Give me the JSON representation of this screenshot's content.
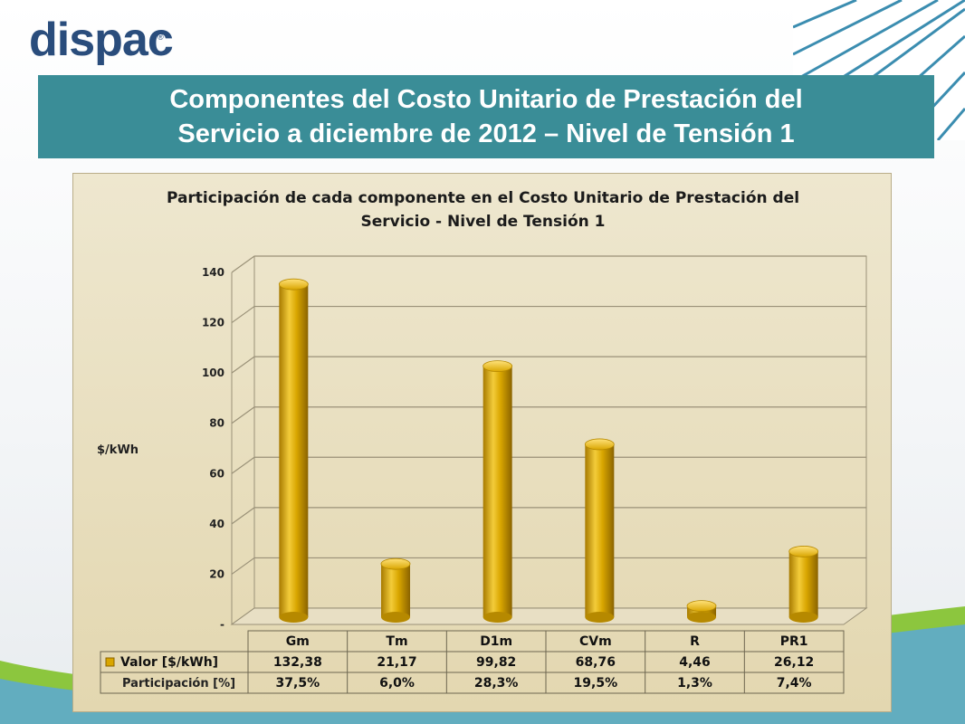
{
  "logo": {
    "text": "dispac",
    "registered": "®"
  },
  "banner": {
    "line1": "Componentes del Costo Unitario de Prestación del",
    "line2": "Servicio a diciembre de 2012 – Nivel de Tensión 1"
  },
  "colors": {
    "banner": "#3a8d97",
    "bar": "#d9a600",
    "chart_bg": "#e6dcbc",
    "logo": "#2a4d7c"
  },
  "chart_data": {
    "type": "bar",
    "title": "Participación de cada componente en el Costo Unitario de Prestación del Servicio - Nivel de Tensión 1",
    "title_line1": "Participación de cada componente en el Costo Unitario de Prestación del",
    "title_line2": "Servicio - Nivel de Tensión 1",
    "ylabel": "$/kWh",
    "ylim": [
      0,
      140
    ],
    "yticks": [
      0,
      20,
      40,
      60,
      80,
      100,
      120,
      140
    ],
    "ytick_labels": [
      "-",
      "20",
      "40",
      "60",
      "80",
      "100",
      "120",
      "140"
    ],
    "grid": true,
    "categories": [
      "Gm",
      "Tm",
      "D1m",
      "CVm",
      "R",
      "PR1"
    ],
    "series": [
      {
        "name": "Valor [$/kWh]",
        "values": [
          132.38,
          21.17,
          99.82,
          68.76,
          4.46,
          26.12
        ],
        "labels": [
          "132,38",
          "21,17",
          "99,82",
          "68,76",
          "4,46",
          "26,12"
        ]
      }
    ],
    "table": {
      "row_labels": [
        "Valor [$/kWh]",
        "Participación [%]"
      ],
      "participacion": [
        "37,5%",
        "6,0%",
        "28,3%",
        "19,5%",
        "1,3%",
        "7,4%"
      ]
    }
  }
}
